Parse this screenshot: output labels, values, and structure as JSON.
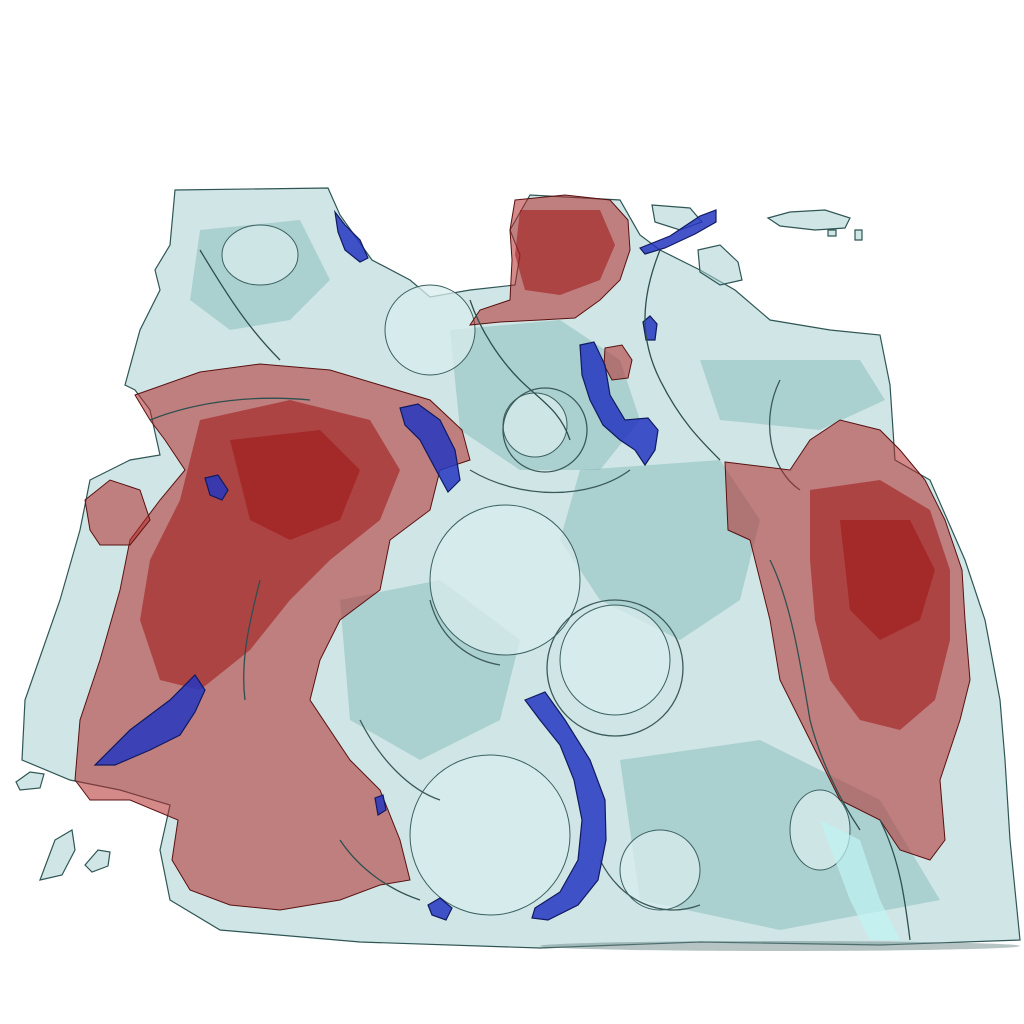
{
  "scene": {
    "kind": "isosurface-render",
    "background_color": "#ffffff",
    "colors": {
      "neutral_surface": "#a9d1d1",
      "positive_surface": "#b22a2a",
      "negative_surface": "#2436c0",
      "outline": "#2f4f4f"
    },
    "surfaces": [
      {
        "name": "neutral-isosurface",
        "color": "#a9d1d1"
      },
      {
        "name": "positive-isosurface",
        "color": "#b22a2a"
      },
      {
        "name": "negative-isosurface",
        "color": "#2436c0"
      }
    ]
  }
}
